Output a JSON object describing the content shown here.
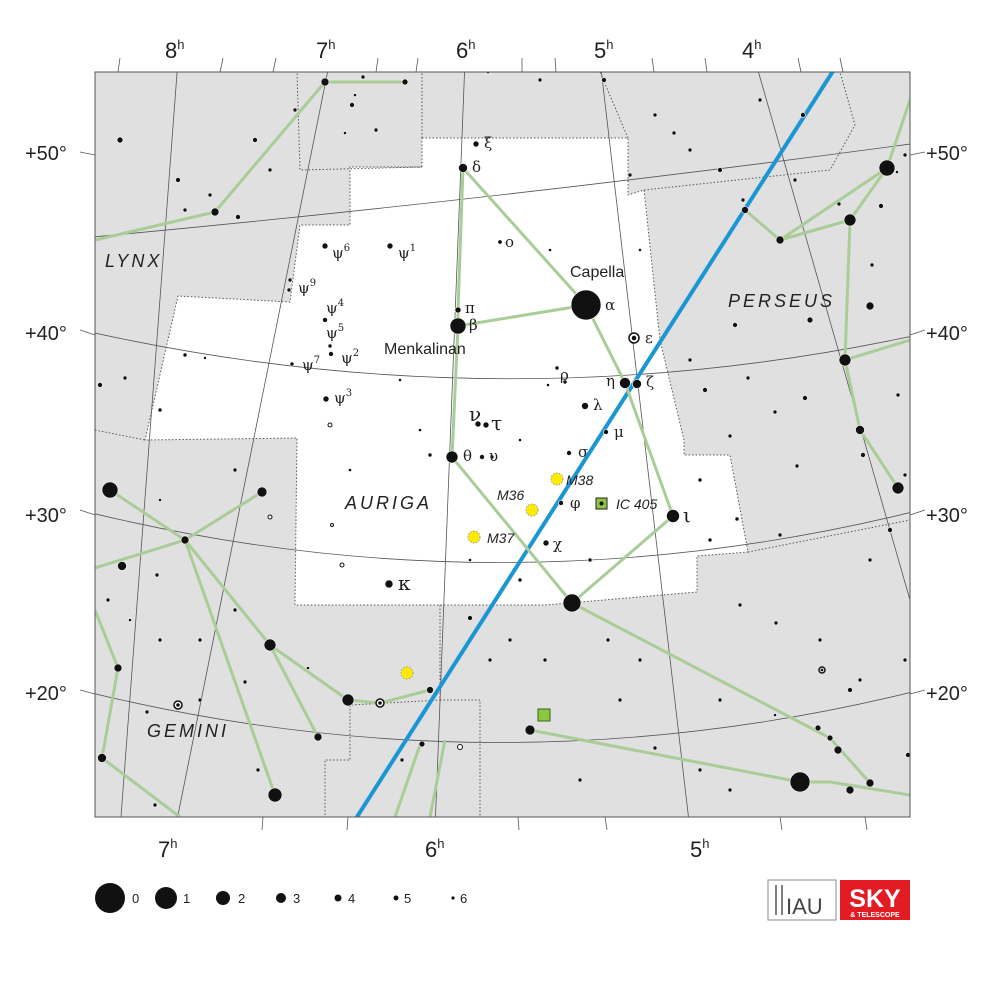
{
  "ra_labels_top": [
    "8",
    "7",
    "6",
    "5",
    "4"
  ],
  "ra_labels_bottom": [
    "7",
    "6",
    "5"
  ],
  "ra_unit": "h",
  "dec_labels_left": [
    "+50°",
    "+40°",
    "+30°",
    "+20°"
  ],
  "dec_labels_right": [
    "+50°",
    "+40°",
    "+30°",
    "+20°"
  ],
  "constellations": {
    "main": "AURIGA",
    "lynx": "LYNX",
    "perseus": "PERSEUS",
    "gemini": "GEMINI"
  },
  "star_names": {
    "capella": "Capella",
    "menkalinan": "Menkalinan"
  },
  "greek": {
    "alpha": "α",
    "beta": "β",
    "pi": "π",
    "delta": "δ",
    "xi": "ξ",
    "omicron": "ο",
    "epsilon": "ε",
    "eta": "η",
    "zeta": "ζ",
    "rho": "ρ",
    "lambda": "λ",
    "mu": "μ",
    "nu": "ν",
    "tau": "τ",
    "theta": "θ",
    "upsilon": "υ",
    "sigma": "σ",
    "phi": "φ",
    "chi": "χ",
    "iota": "ι",
    "kappa": "κ",
    "psi1": "ψ",
    "psi2": "ψ",
    "psi3": "ψ",
    "psi4": "ψ",
    "psi5": "ψ",
    "psi6": "ψ",
    "psi7": "ψ",
    "psi9": "ψ"
  },
  "psi_sup": {
    "psi1": "1",
    "psi2": "2",
    "psi3": "3",
    "psi4": "4",
    "psi5": "5",
    "psi6": "6",
    "psi7": "7",
    "psi9": "9"
  },
  "deep_sky": {
    "m36": "M36",
    "m37": "M37",
    "m38": "M38",
    "ic405": "IC 405"
  },
  "magnitude_legend": [
    "0",
    "1",
    "2",
    "3",
    "4",
    "5",
    "6"
  ],
  "logos": {
    "iau": "IAU",
    "sky": "SKY",
    "telescope": "& TELESCOPE"
  },
  "colors": {
    "constellation_bg": "#e0e0e0",
    "auriga_bg": "#ffffff",
    "figure_lines": "#a9cd97",
    "ecliptic": "#1a96d4",
    "grid": "#555555",
    "cluster": "#ffea00",
    "nebula": "#8dc63f",
    "sky_logo": "#e31b23"
  }
}
